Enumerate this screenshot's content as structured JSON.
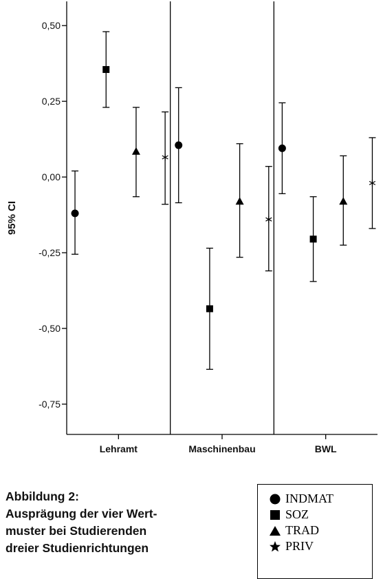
{
  "chart_data": {
    "type": "errorbar",
    "ylabel": "95% CI",
    "ylim": [
      -0.85,
      0.58
    ],
    "yticks": [
      0.5,
      0.25,
      0.0,
      -0.25,
      -0.5,
      -0.75
    ],
    "ytick_labels": [
      "0,50",
      "0,25",
      "0,00",
      "-0,25",
      "-0,50",
      "-0,75"
    ],
    "grid": false,
    "legend_position": "bottom-right",
    "categories": [
      "Lehramt",
      "Maschinenbau",
      "BWL"
    ],
    "series": [
      {
        "name": "INDMAT",
        "marker": "circle",
        "values": [
          -0.12,
          0.105,
          0.095
        ],
        "lower": [
          -0.255,
          -0.085,
          -0.055
        ],
        "upper": [
          0.02,
          0.295,
          0.245
        ]
      },
      {
        "name": "SOZ",
        "marker": "square",
        "values": [
          0.355,
          -0.435,
          -0.205
        ],
        "lower": [
          0.23,
          -0.635,
          -0.345
        ],
        "upper": [
          0.48,
          -0.235,
          -0.065
        ]
      },
      {
        "name": "TRAD",
        "marker": "triangle",
        "values": [
          0.085,
          -0.08,
          -0.08
        ],
        "lower": [
          -0.065,
          -0.265,
          -0.225
        ],
        "upper": [
          0.23,
          0.11,
          0.07
        ]
      },
      {
        "name": "PRIV",
        "marker": "star",
        "values": [
          0.065,
          -0.14,
          -0.02
        ],
        "lower": [
          -0.09,
          -0.31,
          -0.17
        ],
        "upper": [
          0.215,
          0.035,
          0.13
        ]
      }
    ]
  },
  "caption": {
    "line1": "Abbildung 2:",
    "line2": "Ausprägung der vier Wert-",
    "line3": "muster bei Studierenden",
    "line4": "dreier Studienrichtungen"
  },
  "legend": {
    "items": [
      {
        "label": "INDMAT",
        "marker": "circle"
      },
      {
        "label": "SOZ",
        "marker": "square"
      },
      {
        "label": "TRAD",
        "marker": "triangle"
      },
      {
        "label": "PRIV",
        "marker": "star"
      }
    ]
  }
}
